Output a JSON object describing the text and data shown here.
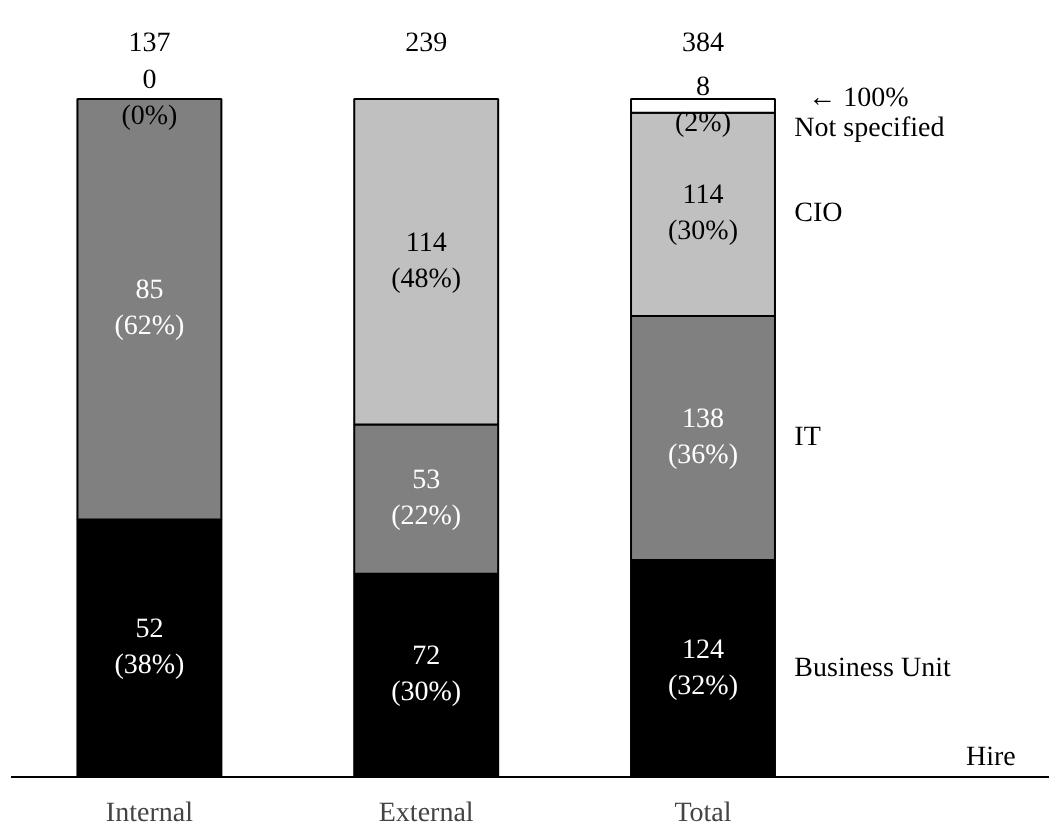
{
  "chart_data": {
    "type": "bar",
    "stacked": true,
    "categories": [
      "Internal",
      "External",
      "Total"
    ],
    "xlabel": "Hire",
    "legend": false,
    "grid": false,
    "series": [
      {
        "name": "Business Unit",
        "color": "#000000",
        "values": [
          38,
          30,
          32
        ],
        "value_labels": [
          "52\n(38%)",
          "72\n(30%)",
          "124\n(32%)"
        ]
      },
      {
        "name": "IT",
        "color": "#808080",
        "values": [
          62,
          22,
          36
        ],
        "value_labels": [
          "85\n(62%)",
          "53\n(22%)",
          "138\n(36%)"
        ]
      },
      {
        "name": "CIO",
        "color": "#c0c0c0",
        "values": [
          null,
          48,
          30
        ],
        "value_labels": [
          null,
          "114\n(48%)",
          "114\n(30%)"
        ]
      },
      {
        "name": "Not specified",
        "color": "#ffffff",
        "values": [
          0,
          null,
          2
        ],
        "value_labels": [
          "0\n(0%)",
          null,
          "8\n(2%)"
        ]
      }
    ],
    "annotations": [
      {
        "text": "137",
        "x": "Internal",
        "y": 100
      },
      {
        "text": "239",
        "x": "External",
        "y": 100
      },
      {
        "text": "384",
        "x": "Total",
        "y": 100
      },
      "← 100%"
    ]
  }
}
